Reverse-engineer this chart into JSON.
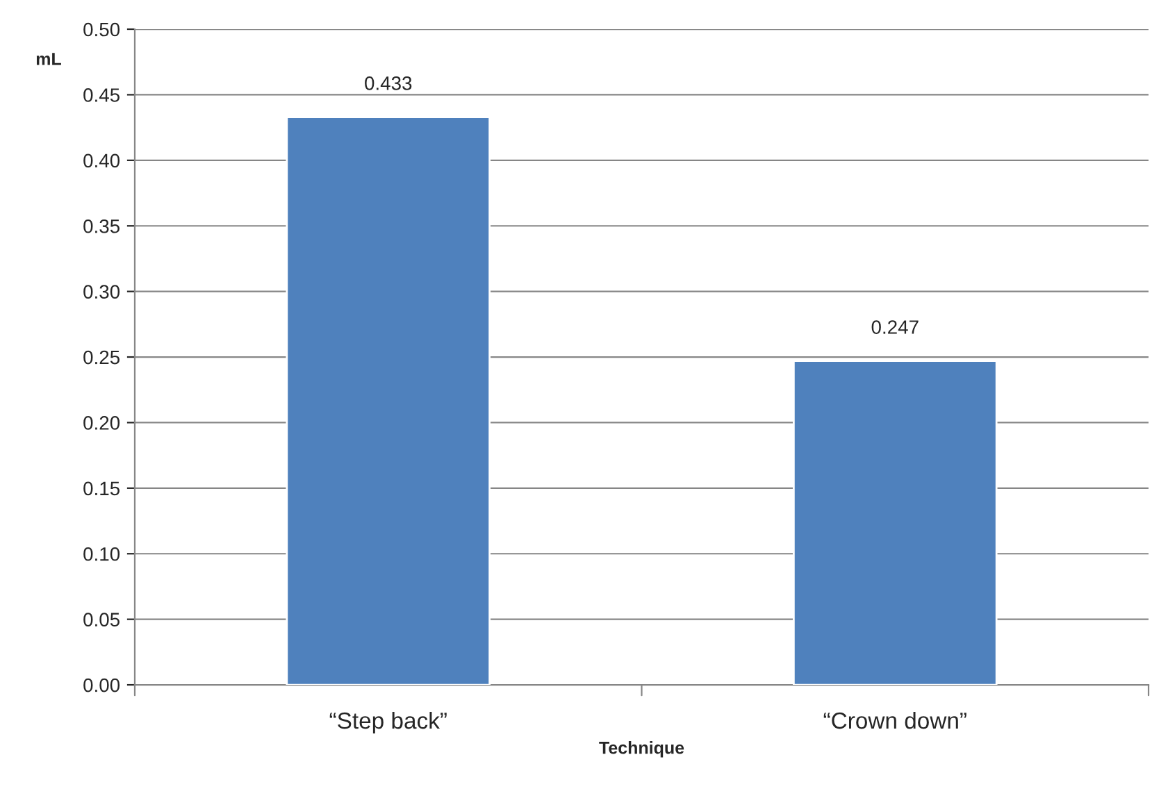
{
  "chart_data": {
    "type": "bar",
    "xlabel": "Technique",
    "ylabel": "mL",
    "categories": [
      "“Step back”",
      "“Crown down”"
    ],
    "values": [
      0.433,
      0.247
    ],
    "color": "#4f81bd",
    "ylim": [
      0,
      0.5
    ],
    "yticks": [
      {
        "value": 0,
        "label": "0.00"
      },
      {
        "value": 0.05,
        "label": "0.05"
      },
      {
        "value": 0.1,
        "label": "0.10"
      },
      {
        "value": 0.15,
        "label": "0.15"
      },
      {
        "value": 0.2,
        "label": "0.20"
      },
      {
        "value": 0.25,
        "label": "0.25"
      },
      {
        "value": 0.3,
        "label": "0.30"
      },
      {
        "value": 0.35,
        "label": "0.35"
      },
      {
        "value": 0.4,
        "label": "0.40"
      },
      {
        "value": 0.45,
        "label": "0.45"
      },
      {
        "value": 0.5,
        "label": "0.50"
      }
    ],
    "grid": "y",
    "data_labels": true,
    "legend": false
  }
}
